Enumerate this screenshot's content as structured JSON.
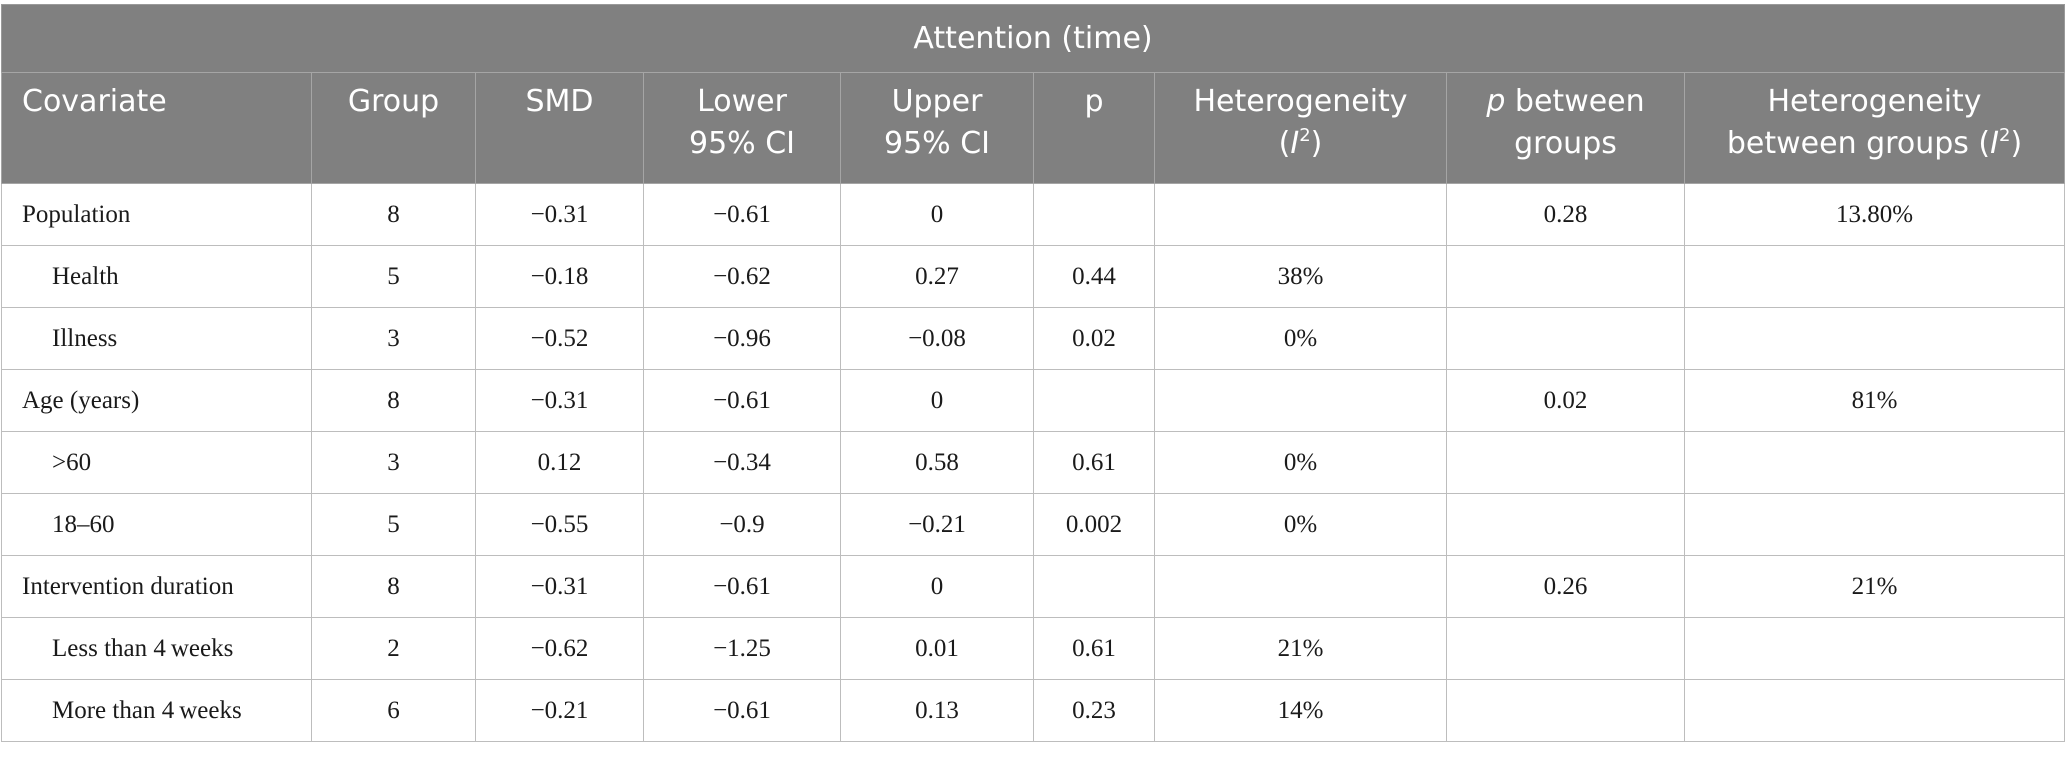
{
  "table": {
    "title": "Attention (time)",
    "headers": {
      "covariate": "Covariate",
      "group": "Group",
      "smd": "SMD",
      "lower_line1": "Lower",
      "lower_line2": "95% CI",
      "upper_line1": "Upper",
      "upper_line2": "95% CI",
      "p": "p",
      "het_line1": "Heterogeneity",
      "het_open": "(",
      "het_i": "I",
      "het_sup": "2",
      "het_close": ")",
      "pbetween_p": "p",
      "pbetween_rest": " between",
      "pbetween_line2": "groups",
      "hetbetween_line1": "Heterogeneity",
      "hetbetween_line2": "between groups (",
      "hetbetween_i": "I",
      "hetbetween_sup": "2",
      "hetbetween_close": ")"
    },
    "rows": [
      {
        "covariate": "Population",
        "group": "8",
        "smd": "−0.31",
        "lower": "−0.61",
        "upper": "0",
        "p": "",
        "het": "",
        "p_between": "0.28",
        "het_between": "13.80%"
      },
      {
        "covariate": "Health",
        "group": "5",
        "smd": "−0.18",
        "lower": "−0.62",
        "upper": "0.27",
        "p": "0.44",
        "het": "38%",
        "p_between": "",
        "het_between": ""
      },
      {
        "covariate": "Illness",
        "group": "3",
        "smd": "−0.52",
        "lower": "−0.96",
        "upper": "−0.08",
        "p": "0.02",
        "het": "0%",
        "p_between": "",
        "het_between": ""
      },
      {
        "covariate": "Age (years)",
        "group": "8",
        "smd": "−0.31",
        "lower": "−0.61",
        "upper": "0",
        "p": "",
        "het": "",
        "p_between": "0.02",
        "het_between": "81%"
      },
      {
        "covariate": ">60",
        "group": "3",
        "smd": "0.12",
        "lower": "−0.34",
        "upper": "0.58",
        "p": "0.61",
        "het": "0%",
        "p_between": "",
        "het_between": ""
      },
      {
        "covariate": "18–60",
        "group": "5",
        "smd": "−0.55",
        "lower": "−0.9",
        "upper": "−0.21",
        "p": "0.002",
        "het": "0%",
        "p_between": "",
        "het_between": ""
      },
      {
        "covariate": "Intervention duration",
        "group": "8",
        "smd": "−0.31",
        "lower": "−0.61",
        "upper": "0",
        "p": "",
        "het": "",
        "p_between": "0.26",
        "het_between": "21%"
      },
      {
        "covariate": "Less than 4 weeks",
        "group": "2",
        "smd": "−0.62",
        "lower": "−1.25",
        "upper": "0.01",
        "p": "0.61",
        "het": "21%",
        "p_between": "",
        "het_between": ""
      },
      {
        "covariate": "More than 4 weeks",
        "group": "6",
        "smd": "−0.21",
        "lower": "−0.61",
        "upper": "0.13",
        "p": "0.23",
        "het": "14%",
        "p_between": "",
        "het_between": ""
      }
    ]
  }
}
